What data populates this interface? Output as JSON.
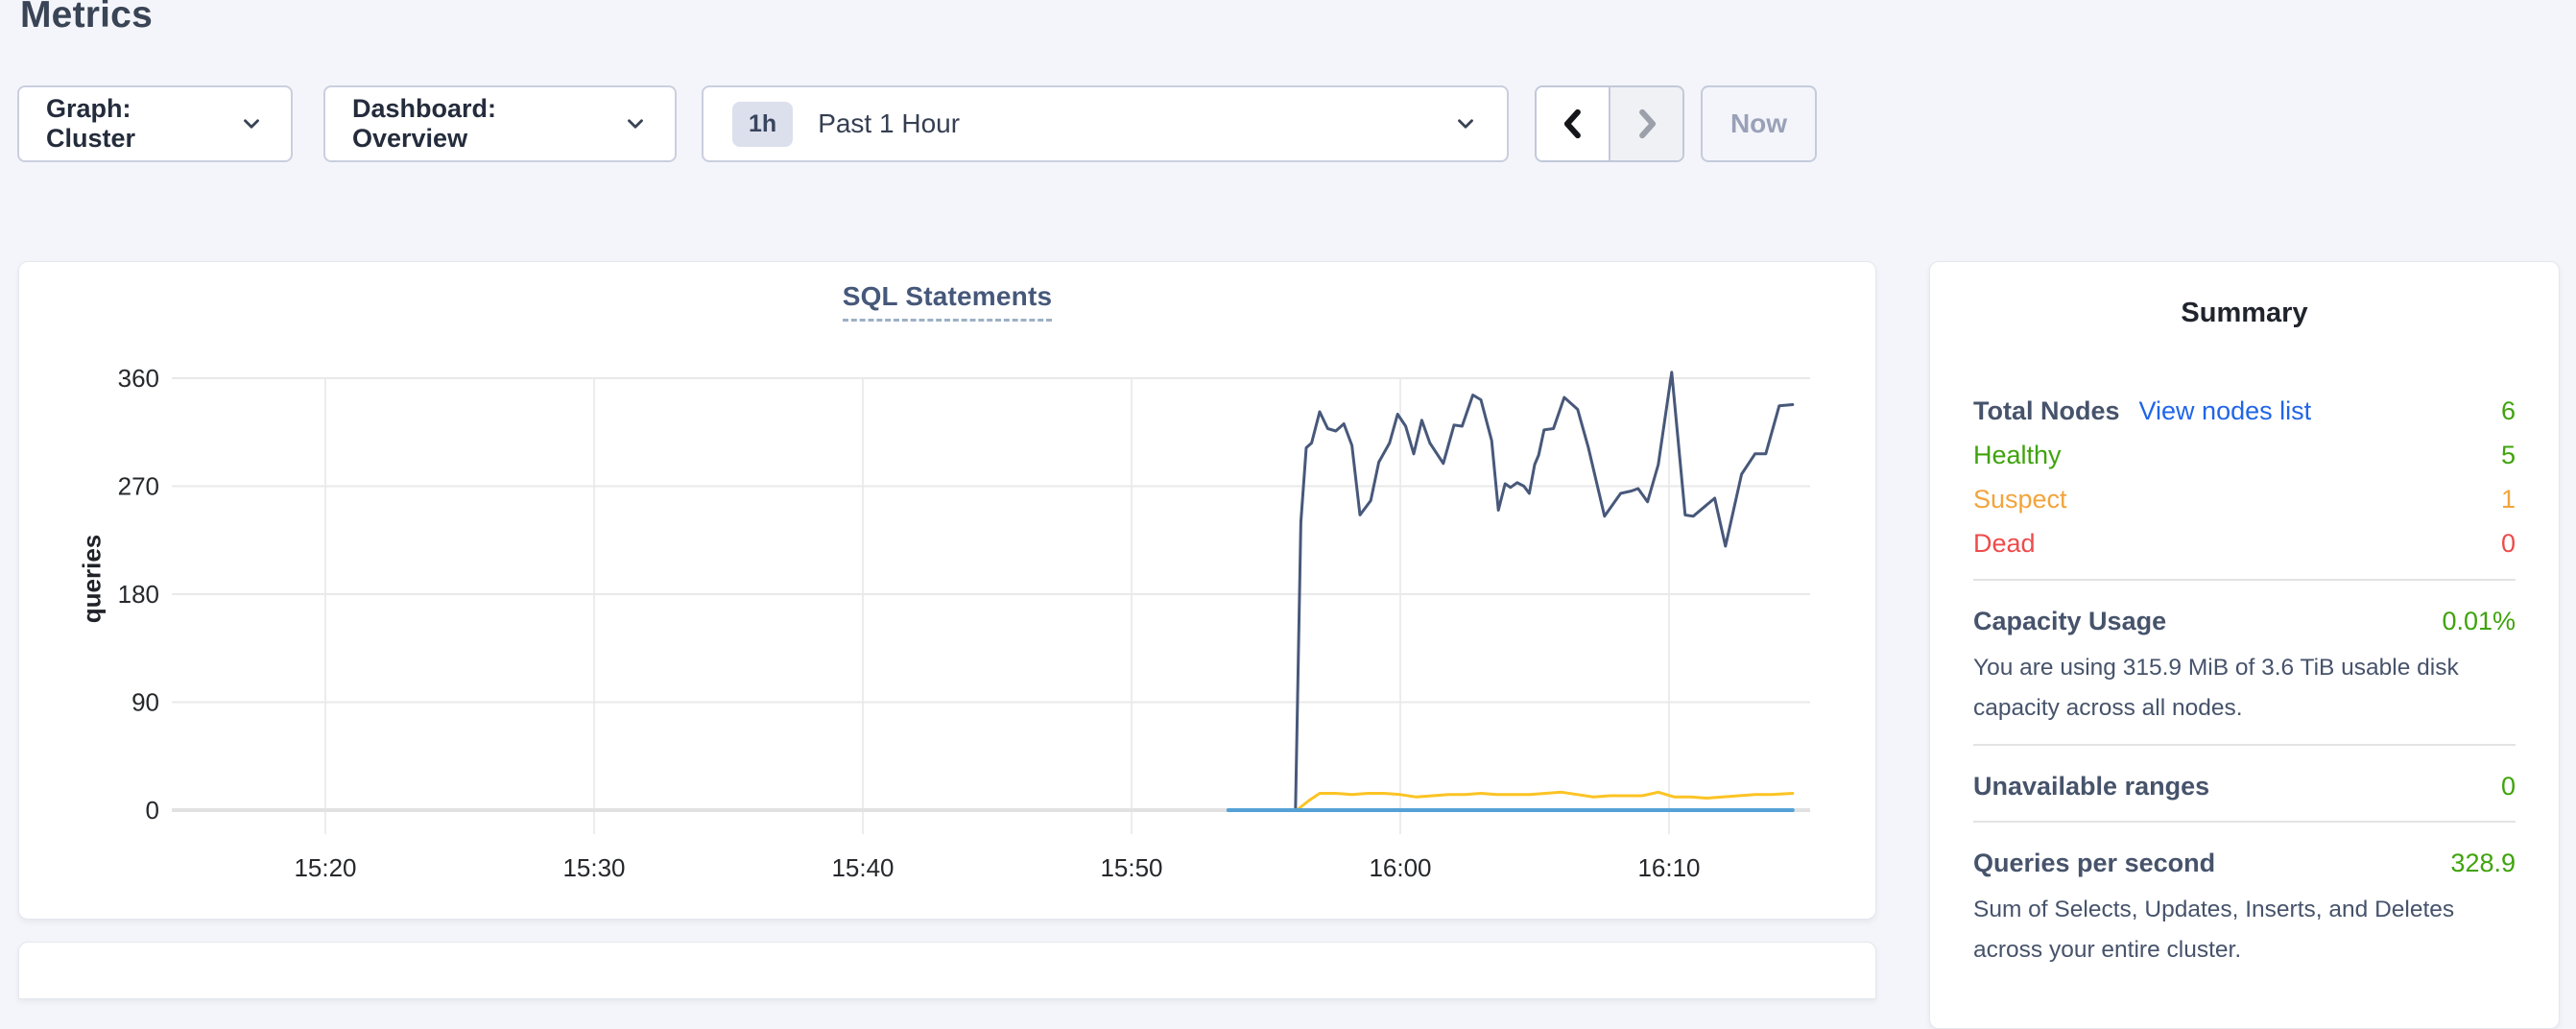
{
  "page": {
    "title": "Metrics"
  },
  "toolbar": {
    "graph_dropdown": {
      "label": "Graph: Cluster"
    },
    "dashboard_dropdown": {
      "label": "Dashboard: Overview"
    },
    "time_selector": {
      "badge": "1h",
      "label": "Past 1 Hour"
    },
    "now_label": "Now"
  },
  "chart_data": {
    "type": "line",
    "title": "SQL Statements",
    "ylabel": "queries",
    "y_ticks": [
      0,
      90,
      180,
      270,
      360
    ],
    "ylim": [
      0,
      360
    ],
    "grid": true,
    "legend": "none",
    "x_ticks": [
      {
        "label": "15:20",
        "m": 0
      },
      {
        "label": "15:30",
        "m": 10
      },
      {
        "label": "15:40",
        "m": 20
      },
      {
        "label": "15:50",
        "m": 30
      },
      {
        "label": "16:00",
        "m": 40
      },
      {
        "label": "16:10",
        "m": 50
      }
    ],
    "x_unit": "minutes after 15:20",
    "series": [
      {
        "name": "navy-line",
        "color": "#47587a",
        "width": 3,
        "points": [
          [
            36.1,
            0
          ],
          [
            36.3,
            240
          ],
          [
            36.5,
            302
          ],
          [
            36.7,
            306
          ],
          [
            37.0,
            332
          ],
          [
            37.3,
            318
          ],
          [
            37.6,
            316
          ],
          [
            37.9,
            322
          ],
          [
            38.2,
            304
          ],
          [
            38.5,
            246
          ],
          [
            38.9,
            258
          ],
          [
            39.2,
            290
          ],
          [
            39.6,
            306
          ],
          [
            39.9,
            330
          ],
          [
            40.2,
            320
          ],
          [
            40.5,
            297
          ],
          [
            40.8,
            325
          ],
          [
            41.1,
            306
          ],
          [
            41.6,
            289
          ],
          [
            42.0,
            321
          ],
          [
            42.3,
            320
          ],
          [
            42.7,
            346
          ],
          [
            43.0,
            342
          ],
          [
            43.4,
            308
          ],
          [
            43.65,
            250
          ],
          [
            43.9,
            272
          ],
          [
            44.1,
            269
          ],
          [
            44.35,
            273
          ],
          [
            44.6,
            270
          ],
          [
            44.8,
            264
          ],
          [
            45.0,
            288
          ],
          [
            45.15,
            296
          ],
          [
            45.35,
            317
          ],
          [
            45.7,
            318
          ],
          [
            46.1,
            344
          ],
          [
            46.6,
            334
          ],
          [
            47.0,
            302
          ],
          [
            47.6,
            245
          ],
          [
            48.2,
            264
          ],
          [
            48.6,
            266
          ],
          [
            48.85,
            268
          ],
          [
            49.2,
            257
          ],
          [
            49.6,
            288
          ],
          [
            50.1,
            365
          ],
          [
            50.6,
            246
          ],
          [
            50.9,
            245
          ],
          [
            51.7,
            260
          ],
          [
            52.1,
            220
          ],
          [
            52.7,
            280
          ],
          [
            53.2,
            297
          ],
          [
            53.6,
            297
          ],
          [
            54.1,
            337
          ],
          [
            54.6,
            338
          ]
        ]
      },
      {
        "name": "yellow-line",
        "color": "#fcc324",
        "width": 3,
        "points": [
          [
            36.15,
            0
          ],
          [
            36.6,
            8
          ],
          [
            37.0,
            14
          ],
          [
            37.6,
            14
          ],
          [
            38.2,
            13
          ],
          [
            38.8,
            14
          ],
          [
            39.4,
            14
          ],
          [
            40.0,
            13
          ],
          [
            40.6,
            11
          ],
          [
            41.2,
            12
          ],
          [
            41.8,
            13
          ],
          [
            42.4,
            13
          ],
          [
            43.0,
            14
          ],
          [
            43.6,
            13
          ],
          [
            44.2,
            13
          ],
          [
            44.8,
            13
          ],
          [
            45.4,
            14
          ],
          [
            46.0,
            15
          ],
          [
            46.6,
            13
          ],
          [
            47.2,
            11
          ],
          [
            47.8,
            12
          ],
          [
            48.4,
            12
          ],
          [
            49.0,
            12
          ],
          [
            49.6,
            15
          ],
          [
            50.2,
            11
          ],
          [
            50.8,
            11
          ],
          [
            51.4,
            10
          ],
          [
            52.0,
            11
          ],
          [
            52.6,
            12
          ],
          [
            53.2,
            13
          ],
          [
            53.8,
            13
          ],
          [
            54.6,
            14
          ]
        ]
      },
      {
        "name": "blue-line",
        "color": "#55a1d6",
        "width": 4,
        "points": [
          [
            33.6,
            0
          ],
          [
            54.6,
            0
          ]
        ]
      }
    ]
  },
  "summary": {
    "title": "Summary",
    "total": {
      "label": "Total Nodes",
      "link": "View nodes list",
      "value": "6"
    },
    "node_rows": [
      {
        "label": "Healthy",
        "value": "5",
        "color_key": "healthy_green"
      },
      {
        "label": "Suspect",
        "value": "1",
        "color_key": "suspect_orange"
      },
      {
        "label": "Dead",
        "value": "0",
        "color_key": "dead_red"
      }
    ],
    "capacity": {
      "label": "Capacity Usage",
      "value": "0.01%",
      "desc": "You are using 315.9 MiB of 3.6 TiB usable disk capacity across all nodes."
    },
    "unavailable": {
      "label": "Unavailable ranges",
      "value": "0"
    },
    "qps": {
      "label": "Queries per second",
      "value": "328.9",
      "desc": "Sum of Selects, Updates, Inserts, and Deletes across your entire cluster."
    }
  },
  "colors": {
    "accent_link": "#2065e9",
    "healthy_green": "#3fa30c",
    "suspect_orange": "#f2a43b",
    "dead_red": "#ee4b4b",
    "series_navy": "#47587a",
    "series_yellow": "#fcc324",
    "series_blue": "#55a1d6",
    "heading_slate": "#394455",
    "gridline": "#e9e9e9"
  }
}
